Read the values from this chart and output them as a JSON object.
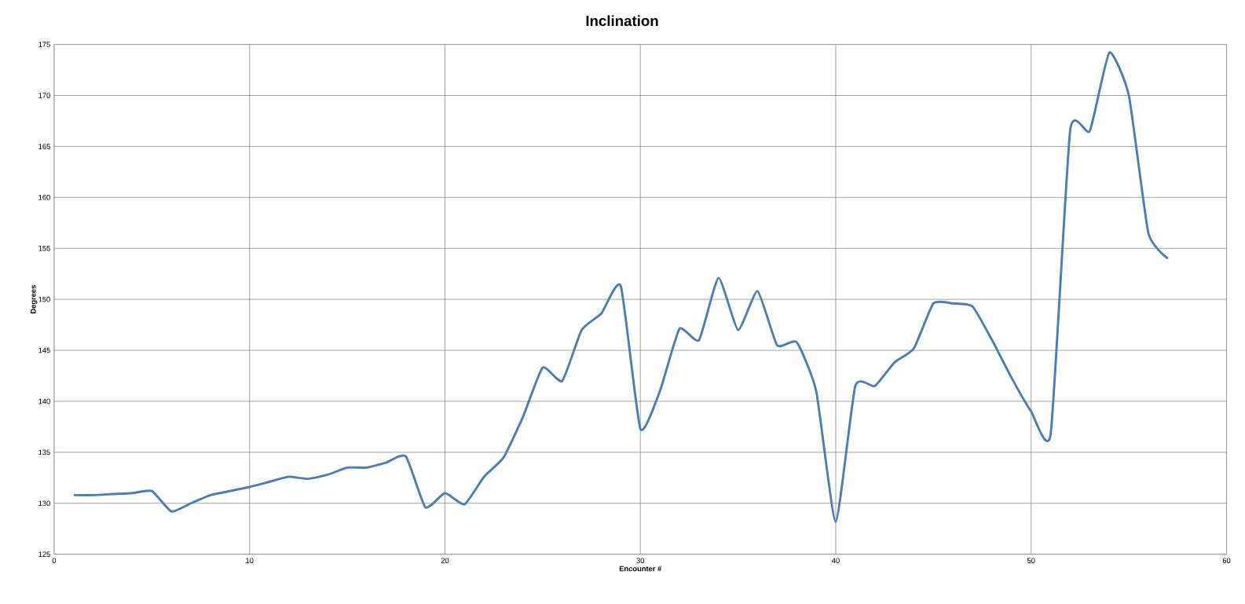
{
  "chart_data": {
    "type": "line",
    "title": "Inclination",
    "xlabel": "Encounter #",
    "ylabel": "Degrees",
    "x": [
      1,
      2,
      3,
      4,
      5,
      6,
      7,
      8,
      9,
      10,
      11,
      12,
      13,
      14,
      15,
      16,
      17,
      18,
      19,
      20,
      21,
      22,
      23,
      24,
      25,
      26,
      27,
      28,
      29,
      30,
      31,
      32,
      33,
      34,
      35,
      36,
      37,
      38,
      39,
      40,
      41,
      42,
      43,
      44,
      45,
      46,
      47,
      48,
      49,
      50,
      51,
      52,
      53,
      54,
      55,
      56,
      57
    ],
    "series": [
      {
        "color": "#4a7ebb",
        "values": [
          130.8,
          130.8,
          130.9,
          131.0,
          131.2,
          129.2,
          130.0,
          130.8,
          131.2,
          131.6,
          132.1,
          132.6,
          132.4,
          132.8,
          133.5,
          133.5,
          134.0,
          134.6,
          129.6,
          131.0,
          129.9,
          132.6,
          134.5,
          138.5,
          143.3,
          142.0,
          147.0,
          148.6,
          151.3,
          137.3,
          141.0,
          147.1,
          146.0,
          152.1,
          147.0,
          150.8,
          145.5,
          145.8,
          141.0,
          128.2,
          141.5,
          141.5,
          143.8,
          145.2,
          149.6,
          149.6,
          149.3,
          146.0,
          142.3,
          139.0,
          136.8,
          166.6,
          166.5,
          174.2,
          170.0,
          156.5,
          154.0
        ]
      }
    ],
    "xlim": [
      0,
      60
    ],
    "xticks": [
      0,
      10,
      20,
      30,
      40,
      50,
      60
    ],
    "ylim": [
      125,
      175
    ],
    "yticks": [
      125,
      130,
      135,
      140,
      145,
      150,
      155,
      160,
      165,
      170,
      175
    ],
    "grid": true,
    "marker": "none",
    "line_style": "solid"
  }
}
